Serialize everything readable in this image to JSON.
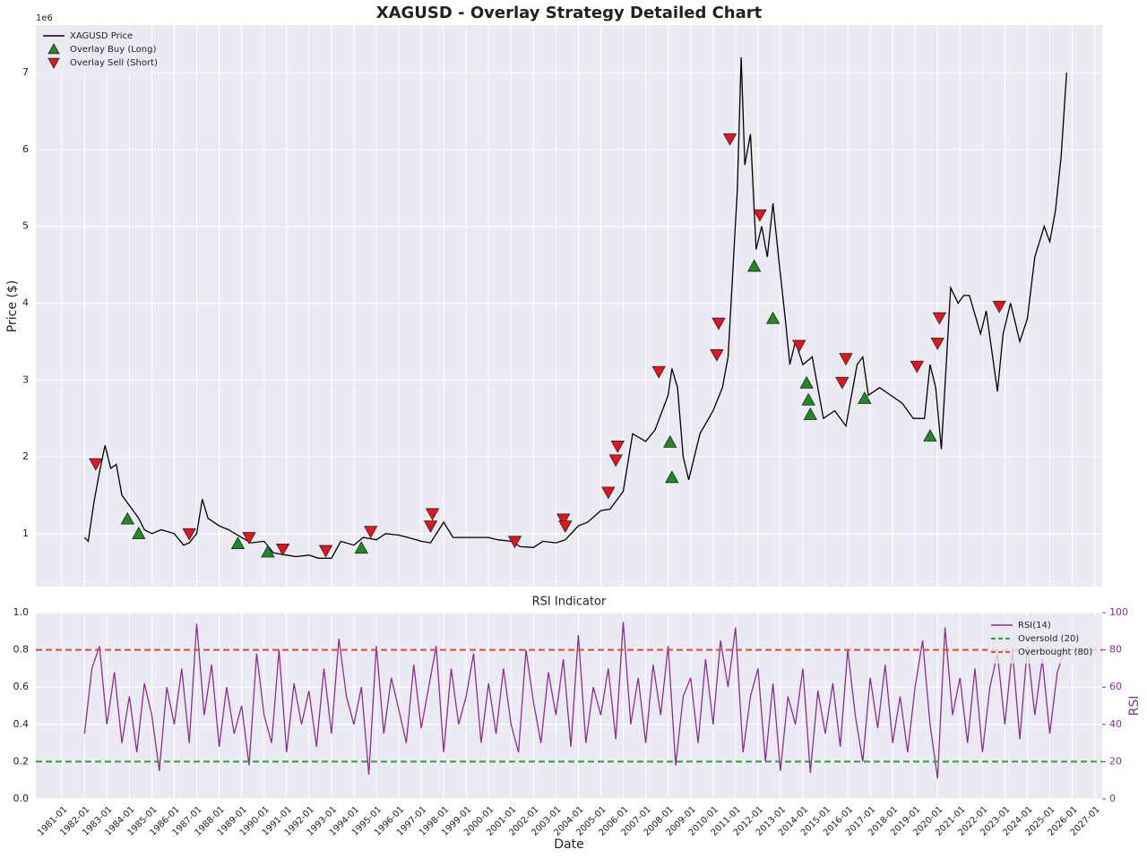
{
  "chart_data": [
    {
      "type": "line",
      "title": "XAGUSD - Overlay Strategy Detailed Chart",
      "ylabel": "Price ($)",
      "y_offset_label": "1e6",
      "ylim": [
        0.31,
        7.62
      ],
      "yticks": [
        1,
        2,
        3,
        4,
        5,
        6,
        7
      ],
      "grid": true,
      "legend": "upper left",
      "series": [
        {
          "name": "XAGUSD Price",
          "color": "#000000",
          "marker": "line",
          "x": [
            "1982-01",
            "1982-03",
            "1982-06",
            "1982-09",
            "1982-12",
            "1983-03",
            "1983-06",
            "1983-09",
            "1983-12",
            "1984-03",
            "1984-06",
            "1984-09",
            "1985-01",
            "1985-06",
            "1986-01",
            "1986-06",
            "1986-09",
            "1987-01",
            "1987-04",
            "1987-07",
            "1988-01",
            "1988-06",
            "1989-01",
            "1989-06",
            "1990-01",
            "1990-06",
            "1991-01",
            "1991-06",
            "1992-01",
            "1992-06",
            "1993-01",
            "1993-06",
            "1994-01",
            "1994-06",
            "1995-01",
            "1995-06",
            "1996-01",
            "1996-06",
            "1997-01",
            "1997-06",
            "1998-01",
            "1998-06",
            "1999-01",
            "1999-06",
            "2000-01",
            "2000-06",
            "2001-01",
            "2001-06",
            "2002-01",
            "2002-06",
            "2003-01",
            "2003-06",
            "2004-01",
            "2004-06",
            "2005-01",
            "2005-06",
            "2006-01",
            "2006-06",
            "2007-01",
            "2007-06",
            "2008-01",
            "2008-03",
            "2008-06",
            "2008-09",
            "2008-12",
            "2009-06",
            "2010-01",
            "2010-06",
            "2010-09",
            "2010-12",
            "2011-02",
            "2011-04",
            "2011-06",
            "2011-09",
            "2011-12",
            "2012-03",
            "2012-06",
            "2012-09",
            "2012-12",
            "2013-04",
            "2013-06",
            "2013-09",
            "2014-01",
            "2014-06",
            "2014-12",
            "2015-06",
            "2015-12",
            "2016-06",
            "2016-09",
            "2016-12",
            "2017-06",
            "2017-12",
            "2018-06",
            "2018-12",
            "2019-06",
            "2019-09",
            "2019-12",
            "2020-03",
            "2020-08",
            "2020-12",
            "2021-03",
            "2021-06",
            "2021-12",
            "2022-03",
            "2022-09",
            "2022-12",
            "2023-04",
            "2023-09",
            "2024-01",
            "2024-05",
            "2024-10",
            "2025-01",
            "2025-04",
            "2025-07",
            "2025-10"
          ],
          "values": [
            0.95,
            0.9,
            1.4,
            1.8,
            2.15,
            1.85,
            1.9,
            1.5,
            1.4,
            1.3,
            1.2,
            1.05,
            1.0,
            1.05,
            1.0,
            0.85,
            0.88,
            1.0,
            1.45,
            1.2,
            1.1,
            1.05,
            0.95,
            0.88,
            0.9,
            0.75,
            0.72,
            0.7,
            0.72,
            0.68,
            0.68,
            0.9,
            0.85,
            0.95,
            0.92,
            1.0,
            0.98,
            0.95,
            0.9,
            0.88,
            1.15,
            0.95,
            0.95,
            0.95,
            0.95,
            0.92,
            0.9,
            0.83,
            0.82,
            0.9,
            0.88,
            0.92,
            1.1,
            1.15,
            1.3,
            1.32,
            1.55,
            2.3,
            2.2,
            2.35,
            2.8,
            3.15,
            2.9,
            2.0,
            1.7,
            2.3,
            2.6,
            2.9,
            3.3,
            4.6,
            5.5,
            7.2,
            5.8,
            6.2,
            4.7,
            5.0,
            4.6,
            5.3,
            4.6,
            3.7,
            3.2,
            3.5,
            3.2,
            3.3,
            2.5,
            2.6,
            2.4,
            3.2,
            3.3,
            2.8,
            2.9,
            2.8,
            2.7,
            2.5,
            2.5,
            3.2,
            2.9,
            2.1,
            4.2,
            4.0,
            4.1,
            4.1,
            3.6,
            3.9,
            2.85,
            3.6,
            4.0,
            3.5,
            3.8,
            4.6,
            5.0,
            4.8,
            5.2,
            5.9,
            7.0
          ]
        },
        {
          "name": "Overlay Buy (Long)",
          "color": "#1e8c1e",
          "marker": "^",
          "x": [
            "1983-12",
            "1984-06",
            "1988-11",
            "1990-03",
            "1994-05",
            "2008-02",
            "2008-03",
            "2011-11",
            "2012-09",
            "2014-03",
            "2014-04",
            "2014-05",
            "2016-10",
            "2019-09"
          ],
          "values": [
            1.19,
            1.0,
            0.87,
            0.76,
            0.81,
            2.19,
            1.73,
            4.48,
            3.8,
            2.96,
            2.74,
            2.55,
            2.76,
            2.27
          ]
        },
        {
          "name": "Overlay Sell (Short)",
          "color": "#e8141c",
          "marker": "v",
          "x": [
            "1982-07",
            "1986-09",
            "1989-05",
            "1990-11",
            "1992-10",
            "1994-10",
            "1997-06",
            "1997-07",
            "2001-03",
            "2003-05",
            "2003-06",
            "2005-05",
            "2005-09",
            "2005-10",
            "2007-08",
            "2010-03",
            "2010-04",
            "2010-10",
            "2012-02",
            "2013-11",
            "2015-10",
            "2015-12",
            "2019-02",
            "2020-01",
            "2020-02",
            "2022-10"
          ],
          "values": [
            1.91,
            1.0,
            0.95,
            0.8,
            0.78,
            1.03,
            1.1,
            1.26,
            0.9,
            1.19,
            1.1,
            1.54,
            1.96,
            2.14,
            3.11,
            3.33,
            3.74,
            6.14,
            5.15,
            3.45,
            2.97,
            3.28,
            3.18,
            3.48,
            3.81,
            3.96
          ]
        }
      ]
    },
    {
      "type": "line",
      "title": "RSI Indicator",
      "xlabel": "Date",
      "y2label": "RSI",
      "xlim": [
        "1979-11",
        "2027-05"
      ],
      "xticks": [
        "1981-01",
        "1982-01",
        "1983-01",
        "1984-01",
        "1985-01",
        "1986-01",
        "1987-01",
        "1988-01",
        "1989-01",
        "1990-01",
        "1991-01",
        "1992-01",
        "1993-01",
        "1994-01",
        "1995-01",
        "1996-01",
        "1997-01",
        "1998-01",
        "1999-01",
        "2000-01",
        "2001-01",
        "2002-01",
        "2003-01",
        "2004-01",
        "2005-01",
        "2006-01",
        "2007-01",
        "2008-01",
        "2009-01",
        "2010-01",
        "2011-01",
        "2012-01",
        "2013-01",
        "2014-01",
        "2015-01",
        "2016-01",
        "2017-01",
        "2018-01",
        "2019-01",
        "2020-01",
        "2021-01",
        "2022-01",
        "2023-01",
        "2024-01",
        "2025-01",
        "2026-01",
        "2027-01"
      ],
      "ylim": [
        0,
        1
      ],
      "yticks": [
        {
          "value": 0,
          "label": "0.0"
        },
        0.2,
        0.4,
        0.6,
        0.8,
        {
          "value": 1,
          "label": "1.0"
        }
      ],
      "y2lim": [
        0,
        100
      ],
      "y2ticks": [
        0,
        20,
        40,
        60,
        80,
        100
      ],
      "grid": true,
      "legend": "upper right",
      "series": [
        {
          "name": "RSI(14)",
          "color": "#8e2c96",
          "axis": "y2",
          "style": "solid",
          "x": [
            "1982-01",
            "1982-05",
            "1982-09",
            "1983-01",
            "1983-05",
            "1983-09",
            "1984-01",
            "1984-05",
            "1984-09",
            "1985-01",
            "1985-05",
            "1985-09",
            "1986-01",
            "1986-05",
            "1986-09",
            "1987-01",
            "1987-05",
            "1987-09",
            "1988-01",
            "1988-05",
            "1988-09",
            "1989-01",
            "1989-05",
            "1989-09",
            "1990-01",
            "1990-05",
            "1990-09",
            "1991-01",
            "1991-05",
            "1991-09",
            "1992-01",
            "1992-05",
            "1992-09",
            "1993-01",
            "1993-05",
            "1993-09",
            "1994-01",
            "1994-05",
            "1994-09",
            "1995-01",
            "1995-05",
            "1995-09",
            "1996-01",
            "1996-05",
            "1996-09",
            "1997-01",
            "1997-05",
            "1997-09",
            "1998-01",
            "1998-05",
            "1998-09",
            "1999-01",
            "1999-05",
            "1999-09",
            "2000-01",
            "2000-05",
            "2000-09",
            "2001-01",
            "2001-05",
            "2001-09",
            "2002-01",
            "2002-05",
            "2002-09",
            "2003-01",
            "2003-05",
            "2003-09",
            "2004-01",
            "2004-05",
            "2004-09",
            "2005-01",
            "2005-05",
            "2005-09",
            "2006-01",
            "2006-05",
            "2006-09",
            "2007-01",
            "2007-05",
            "2007-09",
            "2008-01",
            "2008-05",
            "2008-09",
            "2009-01",
            "2009-05",
            "2009-09",
            "2010-01",
            "2010-05",
            "2010-09",
            "2011-01",
            "2011-05",
            "2011-09",
            "2012-01",
            "2012-05",
            "2012-09",
            "2013-01",
            "2013-05",
            "2013-09",
            "2014-01",
            "2014-05",
            "2014-09",
            "2015-01",
            "2015-05",
            "2015-09",
            "2016-01",
            "2016-05",
            "2016-09",
            "2017-01",
            "2017-05",
            "2017-09",
            "2018-01",
            "2018-05",
            "2018-09",
            "2019-01",
            "2019-05",
            "2019-09",
            "2020-01",
            "2020-05",
            "2020-09",
            "2021-01",
            "2021-05",
            "2021-09",
            "2022-01",
            "2022-05",
            "2022-09",
            "2023-01",
            "2023-05",
            "2023-09",
            "2024-01",
            "2024-05",
            "2024-09",
            "2025-01",
            "2025-05",
            "2025-09"
          ],
          "values": [
            35,
            70,
            82,
            40,
            68,
            30,
            55,
            25,
            62,
            45,
            15,
            60,
            40,
            70,
            30,
            94,
            45,
            72,
            28,
            60,
            35,
            50,
            18,
            78,
            45,
            30,
            80,
            25,
            62,
            40,
            58,
            28,
            70,
            35,
            86,
            55,
            40,
            60,
            13,
            82,
            35,
            65,
            48,
            30,
            72,
            38,
            60,
            82,
            25,
            70,
            40,
            55,
            78,
            30,
            62,
            35,
            70,
            40,
            25,
            80,
            52,
            30,
            68,
            45,
            75,
            28,
            88,
            30,
            60,
            45,
            70,
            32,
            95,
            40,
            65,
            30,
            72,
            45,
            82,
            18,
            55,
            65,
            30,
            75,
            40,
            85,
            60,
            92,
            25,
            55,
            70,
            20,
            62,
            15,
            55,
            40,
            70,
            14,
            58,
            35,
            62,
            28,
            80,
            45,
            20,
            65,
            38,
            72,
            30,
            55,
            25,
            60,
            85,
            40,
            11,
            92,
            45,
            65,
            30,
            70,
            25,
            60,
            78,
            40,
            80,
            32,
            82,
            45,
            75,
            35,
            68,
            80
          ]
        },
        {
          "name": "Oversold (20)",
          "color": "#2ca02c",
          "axis": "y2",
          "style": "dashed",
          "y": 20
        },
        {
          "name": "Overbought (80)",
          "color": "#e8453c",
          "axis": "y2",
          "style": "dashed",
          "y": 80
        }
      ]
    }
  ]
}
